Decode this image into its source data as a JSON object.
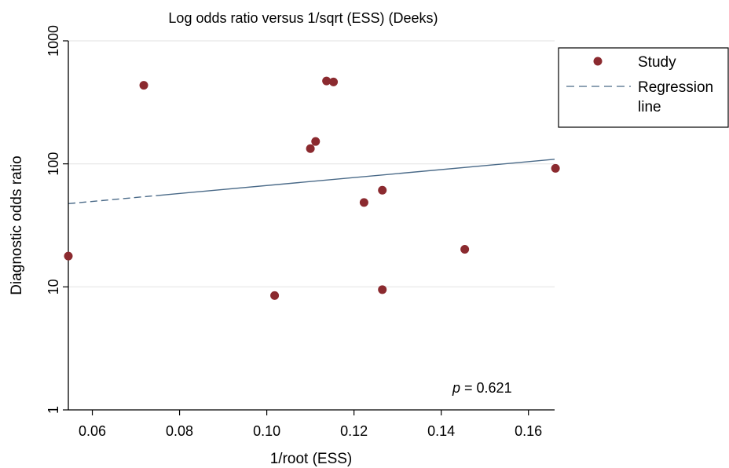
{
  "chart_data": {
    "type": "scatter",
    "title": "Log odds ratio versus 1/sqrt (ESS) (Deeks)",
    "xlabel": "1/root (ESS)",
    "ylabel": "Diagnostic odds ratio",
    "xlim": [
      0.0545,
      0.166
    ],
    "ylim": [
      1,
      1000
    ],
    "y_scale": "log",
    "x_ticks": [
      0.06,
      0.08,
      0.1,
      0.12,
      0.14,
      0.16
    ],
    "x_tick_labels": [
      "0.06",
      "0.08",
      "0.10",
      "0.12",
      "0.14",
      "0.16"
    ],
    "y_ticks": [
      1,
      10,
      100,
      1000
    ],
    "y_tick_labels": [
      "1",
      "10",
      "100",
      "1000"
    ],
    "grid": "horizontal",
    "legend_position": "outside-right",
    "series": [
      {
        "name": "Study",
        "kind": "points",
        "color": "#8b2a2f",
        "points": [
          {
            "x": 0.0545,
            "y": 17.8
          },
          {
            "x": 0.0718,
            "y": 435
          },
          {
            "x": 0.1018,
            "y": 8.5
          },
          {
            "x": 0.11,
            "y": 133
          },
          {
            "x": 0.1112,
            "y": 152
          },
          {
            "x": 0.1137,
            "y": 472
          },
          {
            "x": 0.1153,
            "y": 463
          },
          {
            "x": 0.1223,
            "y": 48.5
          },
          {
            "x": 0.1265,
            "y": 9.5
          },
          {
            "x": 0.1265,
            "y": 61
          },
          {
            "x": 0.1454,
            "y": 20.2
          },
          {
            "x": 0.1662,
            "y": 92
          }
        ]
      },
      {
        "name": "Regression line",
        "kind": "line",
        "color": "#4a6a88",
        "points": [
          {
            "x": 0.0545,
            "y": 47.5
          },
          {
            "x": 0.166,
            "y": 109
          }
        ]
      }
    ],
    "legend": {
      "items": [
        {
          "label": "Study",
          "marker": "dot"
        },
        {
          "label": "Regression line",
          "label_lines": [
            "Regression",
            "line"
          ],
          "marker": "dashed-line"
        }
      ]
    },
    "annotation": {
      "prefix": "p",
      "text": " = 0.621"
    }
  }
}
